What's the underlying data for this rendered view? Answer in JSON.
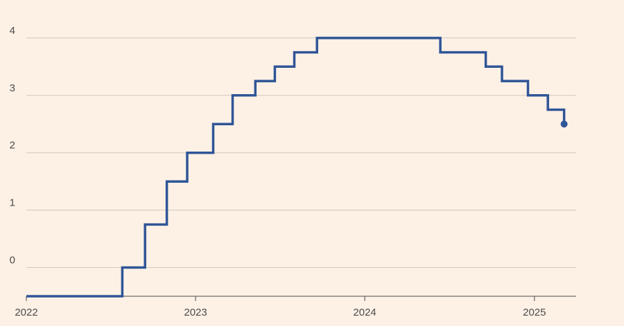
{
  "chart_data": {
    "type": "line",
    "step": true,
    "colors": {
      "background": "#fdf1e6",
      "line": "#2f5597",
      "grid": "#cfc7bf",
      "axis": "#4d4a47"
    },
    "xlim": [
      "2022-01-01",
      "2025-04-01"
    ],
    "ylim": [
      -0.5,
      4.3
    ],
    "x_ticks": [
      "2022",
      "2023",
      "2024",
      "2025"
    ],
    "y_ticks": [
      0,
      1,
      2,
      3,
      4
    ],
    "grid": "horizontal",
    "series": [
      {
        "x": [
          "2022-01-01",
          "2022-07-27",
          "2022-09-14",
          "2022-10-31",
          "2022-12-14",
          "2023-02-08",
          "2023-03-22",
          "2023-05-10",
          "2023-06-21",
          "2023-08-02",
          "2023-09-20",
          "2024-06-12",
          "2024-09-18",
          "2024-10-23",
          "2024-12-18",
          "2025-01-30",
          "2025-03-06",
          "2025-03-06"
        ],
        "y": [
          -0.5,
          0,
          0.75,
          1.5,
          2,
          2.5,
          3,
          3.25,
          3.5,
          3.75,
          4,
          3.75,
          3.5,
          3.25,
          3,
          2.75,
          2.5,
          2.5
        ]
      }
    ],
    "end_marker": true
  }
}
